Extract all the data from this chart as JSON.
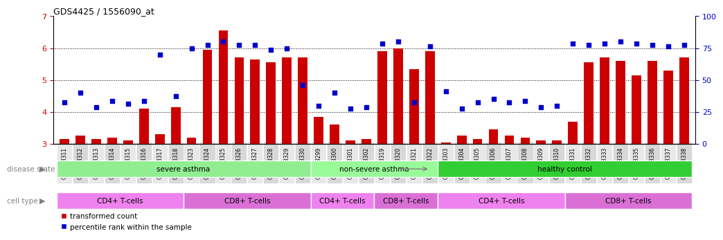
{
  "title": "GDS4425 / 1556090_at",
  "samples": [
    "GSM788311",
    "GSM788312",
    "GSM788313",
    "GSM788314",
    "GSM788315",
    "GSM788316",
    "GSM788317",
    "GSM788318",
    "GSM788323",
    "GSM788324",
    "GSM788325",
    "GSM788326",
    "GSM788327",
    "GSM788328",
    "GSM788329",
    "GSM788330",
    "GSM788299",
    "GSM788300",
    "GSM788301",
    "GSM788302",
    "GSM788319",
    "GSM788320",
    "GSM788321",
    "GSM788322",
    "GSM788303",
    "GSM788304",
    "GSM788305",
    "GSM788306",
    "GSM788307",
    "GSM788308",
    "GSM788309",
    "GSM788310",
    "GSM788331",
    "GSM788332",
    "GSM788333",
    "GSM788334",
    "GSM788335",
    "GSM788336",
    "GSM788337",
    "GSM788338"
  ],
  "bar_values": [
    3.15,
    3.25,
    3.15,
    3.2,
    3.1,
    4.1,
    3.3,
    4.15,
    3.2,
    5.95,
    6.55,
    5.7,
    5.65,
    5.55,
    5.7,
    5.7,
    3.85,
    3.6,
    3.1,
    3.15,
    5.9,
    6.0,
    5.35,
    5.9,
    3.05,
    3.25,
    3.15,
    3.45,
    3.25,
    3.2,
    3.1,
    3.1,
    3.7,
    5.55,
    5.7,
    5.6,
    5.15,
    5.6,
    5.3,
    5.7
  ],
  "dot_values": [
    4.3,
    4.6,
    4.15,
    4.35,
    4.25,
    4.35,
    5.8,
    4.5,
    6.0,
    6.1,
    6.2,
    6.1,
    6.1,
    5.95,
    6.0,
    4.85,
    4.2,
    4.6,
    4.1,
    4.15,
    6.15,
    6.2,
    4.3,
    6.05,
    4.65,
    4.1,
    4.3,
    4.4,
    4.3,
    4.35,
    4.15,
    4.2,
    6.15,
    6.1,
    6.15,
    6.2,
    6.15,
    6.1,
    6.05,
    6.1
  ],
  "ylim_left": [
    3.0,
    7.0
  ],
  "ylim_right": [
    0,
    100
  ],
  "yticks_left": [
    3,
    4,
    5,
    6,
    7
  ],
  "yticks_right": [
    0,
    25,
    50,
    75,
    100
  ],
  "bar_color": "#cc0000",
  "dot_color": "#0000cc",
  "grid_color": "#000000",
  "disease_groups": [
    {
      "label": "severe asthma",
      "start": 0,
      "end": 16,
      "color": "#90ee90"
    },
    {
      "label": "non-severe asthma",
      "start": 16,
      "end": 24,
      "color": "#98fb98"
    },
    {
      "label": "healthy control",
      "start": 24,
      "end": 40,
      "color": "#32cd32"
    }
  ],
  "cell_groups": [
    {
      "label": "CD4+ T-cells",
      "start": 0,
      "end": 8,
      "color": "#ee82ee"
    },
    {
      "label": "CD8+ T-cells",
      "start": 8,
      "end": 16,
      "color": "#da70d6"
    },
    {
      "label": "CD4+ T-cells",
      "start": 16,
      "end": 20,
      "color": "#ee82ee"
    },
    {
      "label": "CD8+ T-cells",
      "start": 20,
      "end": 24,
      "color": "#da70d6"
    },
    {
      "label": "CD4+ T-cells",
      "start": 24,
      "end": 32,
      "color": "#ee82ee"
    },
    {
      "label": "CD8+ T-cells",
      "start": 32,
      "end": 40,
      "color": "#da70d6"
    }
  ],
  "legend_items": [
    {
      "label": "transformed count",
      "color": "#cc0000",
      "marker": "s"
    },
    {
      "label": "percentile rank within the sample",
      "color": "#0000cc",
      "marker": "s"
    }
  ],
  "background_color": "#ffffff",
  "plot_bg_color": "#ffffff"
}
